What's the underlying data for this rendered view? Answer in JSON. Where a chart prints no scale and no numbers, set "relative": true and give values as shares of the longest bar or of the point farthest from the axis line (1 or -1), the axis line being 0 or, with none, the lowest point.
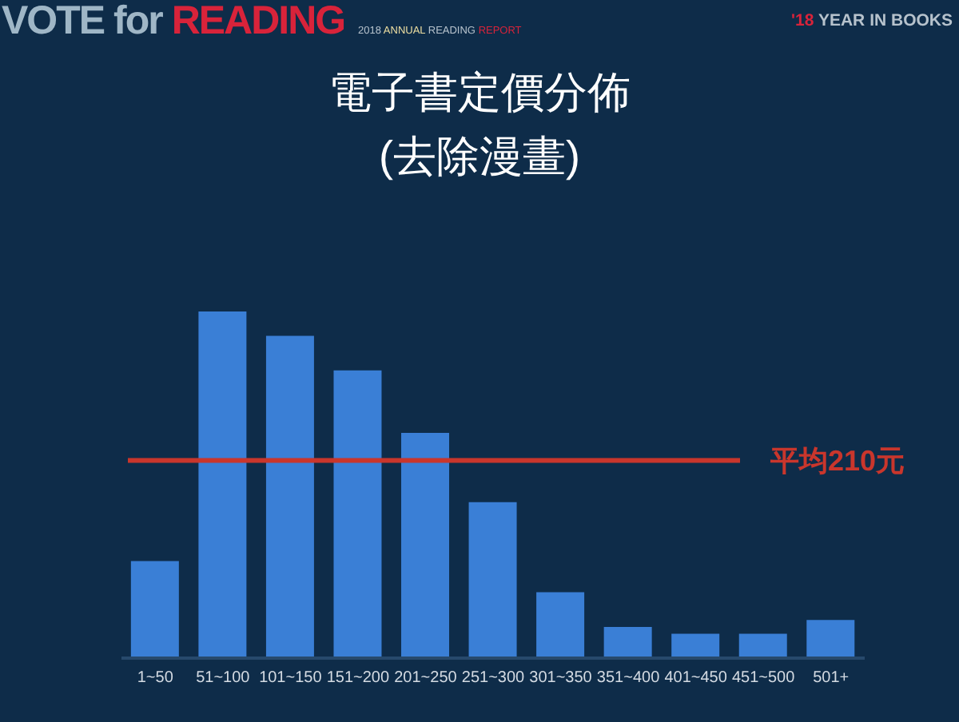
{
  "chart_data": {
    "type": "bar",
    "title": "電子書定價分佈",
    "subtitle": "(去除漫畫)",
    "categories": [
      "1~50",
      "51~100",
      "101~150",
      "151~200",
      "201~250",
      "251~300",
      "301~350",
      "351~400",
      "401~450",
      "451~500",
      "501+"
    ],
    "values": [
      0.28,
      1,
      0.93,
      0.83,
      0.65,
      0.45,
      0.19,
      0.09,
      0.07,
      0.07,
      0.11
    ],
    "color": "#3a7fd6",
    "relative": true,
    "ref_lines": [
      {
        "axis": "y",
        "value": 0.57,
        "label": "平均210元",
        "color": "#c9362c"
      }
    ],
    "annotations": [
      "VOTE for READING",
      "2018 ANNUAL READING REPORT",
      "'18 YEAR IN BOOKS"
    ]
  }
}
